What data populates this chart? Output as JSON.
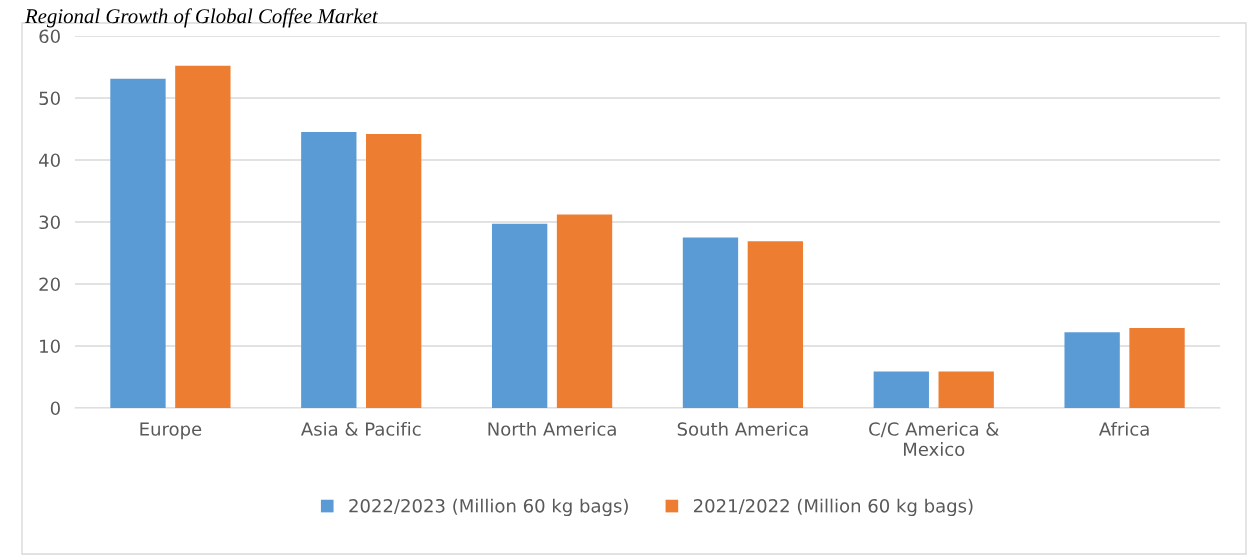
{
  "chart_data": {
    "type": "bar",
    "title": "Regional Growth of Global Coffee Market",
    "categories": [
      "Europe",
      "Asia & Pacific",
      "North America",
      "South America",
      "C/C America &\nMexico",
      "Africa"
    ],
    "series": [
      {
        "name": "2022/2023 (Million 60 kg bags)",
        "color": "#5b9bd5",
        "values": [
          53.1,
          44.5,
          29.7,
          27.5,
          5.9,
          12.2
        ]
      },
      {
        "name": "2021/2022 (Million 60 kg bags)",
        "color": "#ed7d31",
        "values": [
          55.2,
          44.2,
          31.2,
          26.9,
          5.9,
          12.9
        ]
      }
    ],
    "ylim": [
      0,
      60
    ],
    "yticks": [
      0,
      10,
      20,
      30,
      40,
      50,
      60
    ],
    "grid": "y",
    "legend": "bottom"
  }
}
